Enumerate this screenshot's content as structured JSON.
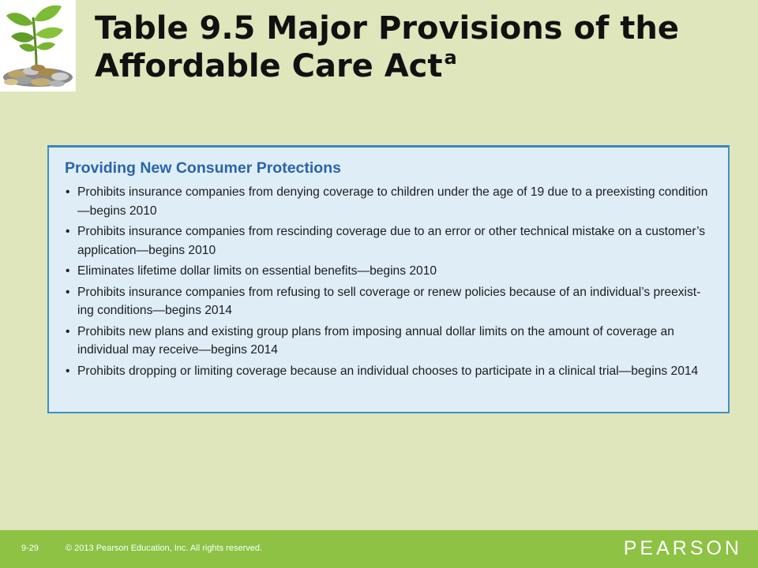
{
  "slide": {
    "title": "Table 9.5  Major Provisions of the\nAffordable Care Act",
    "title_superscript": "a"
  },
  "logo": {
    "icon": "seedling-coins-icon"
  },
  "table": {
    "heading": "Providing New Consumer Protections",
    "bullet": "•",
    "items": [
      "Prohibits insurance companies from denying coverage to children under the age of 19 due to a preexisting condition—begins 2010",
      "Prohibits insurance companies from rescinding coverage due to an error or other technical mistake on a customer’s application—begins 2010",
      "Eliminates lifetime dollar limits on essential benefits—begins 2010",
      "Prohibits insurance companies from refusing to sell coverage or renew policies because of an individual’s preexist-ing conditions—begins 2014",
      "Prohibits new plans and existing group plans from imposing annual dollar limits on the amount of coverage an individual may receive—begins 2014",
      "Prohibits dropping or limiting coverage because an individual chooses to participate in a clinical trial—begins 2014"
    ]
  },
  "footer": {
    "page_number": "9-29",
    "copyright": "© 2013 Pearson Education, Inc. All rights reserved.",
    "brand": "PEARSON"
  },
  "colors": {
    "slide_background": "#dfe6bb",
    "footer_bar": "#8dc245",
    "table_background": "#dfedf7",
    "table_border": "#3f90c4",
    "heading_text": "#2b64a8"
  }
}
